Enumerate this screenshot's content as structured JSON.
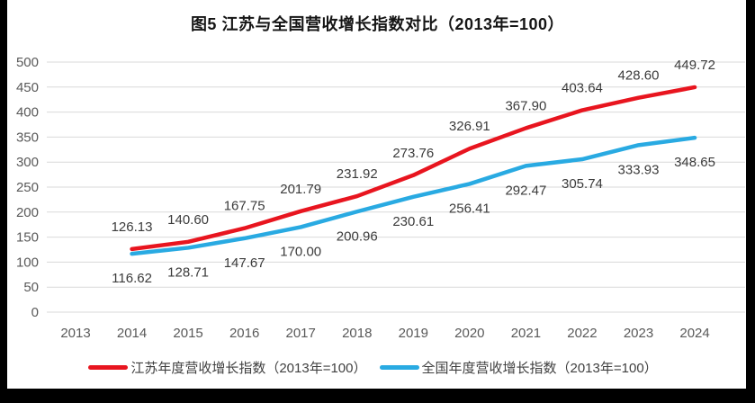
{
  "chart_data": {
    "type": "line",
    "title": "图5  江苏与全国营收增长指数对比（2013年=100）",
    "categories": [
      "2013",
      "2014",
      "2015",
      "2016",
      "2017",
      "2018",
      "2019",
      "2020",
      "2021",
      "2022",
      "2023",
      "2024"
    ],
    "series": [
      {
        "name": "江苏年度营收增长指数（2013年=100）",
        "color": "#e8151f",
        "label_position": "above",
        "values": [
          null,
          126.13,
          140.6,
          167.75,
          201.79,
          231.92,
          273.76,
          326.91,
          367.9,
          403.64,
          428.6,
          449.72
        ]
      },
      {
        "name": "全国年度营收增长指数（2013年=100）",
        "color": "#29aae2",
        "label_position": "below",
        "values": [
          null,
          116.62,
          128.71,
          147.67,
          170.0,
          200.96,
          230.61,
          256.41,
          292.47,
          305.74,
          333.93,
          348.65
        ]
      }
    ],
    "ylim": [
      0,
      500
    ],
    "ytick_step": 50,
    "yticks": [
      0,
      50,
      100,
      150,
      200,
      250,
      300,
      350,
      400,
      450,
      500
    ],
    "grid": true,
    "legend_position": "bottom",
    "value_decimals": 2
  },
  "colors": {
    "gridline": "#d9d9d9",
    "axis_text": "#595959",
    "data_label_text": "#3b3b3b",
    "frame": "#000000",
    "background": "#ffffff"
  }
}
